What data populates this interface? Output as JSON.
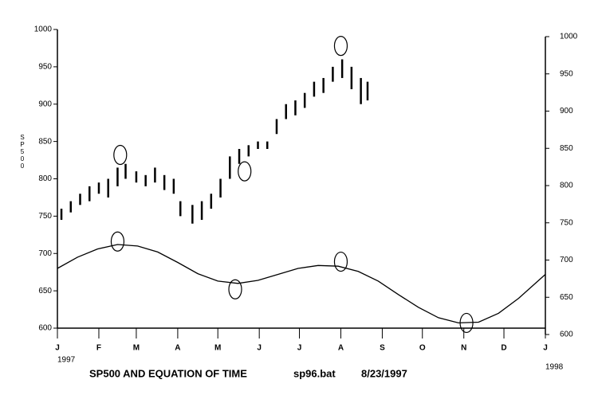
{
  "chart_data": {
    "type": "ohlc",
    "title": "SP500  AND EQUATION OF TIME",
    "annotations": [
      "sp96.bat",
      "8/23/1997"
    ],
    "ylabel": "SP500",
    "year_labels": [
      "1997",
      "1998"
    ],
    "xlim": [
      0,
      365
    ],
    "xticks": [
      {
        "value": 0,
        "label": "J"
      },
      {
        "value": 31,
        "label": "F"
      },
      {
        "value": 59,
        "label": "M"
      },
      {
        "value": 90,
        "label": "A"
      },
      {
        "value": 120,
        "label": "M"
      },
      {
        "value": 151,
        "label": "J"
      },
      {
        "value": 181,
        "label": "J"
      },
      {
        "value": 212,
        "label": "A"
      },
      {
        "value": 243,
        "label": "S"
      },
      {
        "value": 273,
        "label": "O"
      },
      {
        "value": 304,
        "label": "N"
      },
      {
        "value": 334,
        "label": "D"
      },
      {
        "value": 365,
        "label": "J"
      }
    ],
    "ylim": [
      600,
      1000
    ],
    "yticks": [
      600,
      650,
      700,
      750,
      800,
      850,
      900,
      950,
      1000
    ],
    "y2lim": [
      600,
      1000
    ],
    "y2ticks": [
      600,
      650,
      700,
      750,
      800,
      850,
      900,
      950,
      1000
    ],
    "color": "#000000",
    "price": {
      "x": [
        3,
        10,
        17,
        24,
        31,
        38,
        45,
        51,
        59,
        66,
        73,
        80,
        87,
        92,
        101,
        108,
        115,
        122,
        129,
        136,
        143,
        150,
        157,
        164,
        171,
        178,
        185,
        192,
        199,
        206,
        213,
        220,
        227,
        232
      ],
      "high": [
        760,
        770,
        780,
        790,
        795,
        800,
        815,
        820,
        810,
        805,
        815,
        805,
        800,
        770,
        765,
        770,
        780,
        800,
        830,
        840,
        845,
        850,
        850,
        880,
        900,
        905,
        915,
        930,
        935,
        950,
        960,
        950,
        935,
        930
      ],
      "low": [
        745,
        755,
        765,
        770,
        780,
        775,
        790,
        800,
        795,
        790,
        795,
        785,
        780,
        750,
        740,
        745,
        760,
        775,
        800,
        820,
        830,
        840,
        840,
        860,
        880,
        885,
        895,
        910,
        915,
        930,
        935,
        920,
        900,
        905
      ]
    },
    "curve": {
      "x": [
        0,
        15,
        30,
        45,
        60,
        75,
        90,
        105,
        120,
        135,
        150,
        165,
        180,
        195,
        210,
        225,
        240,
        255,
        270,
        285,
        300,
        315,
        330,
        345,
        360,
        365
      ],
      "values": [
        680,
        695,
        706,
        712,
        710,
        702,
        688,
        673,
        663,
        660,
        664,
        672,
        680,
        684,
        683,
        676,
        663,
        645,
        628,
        614,
        607,
        608,
        620,
        640,
        664,
        672
      ]
    },
    "circles": {
      "x": [
        47,
        140,
        212,
        45,
        133,
        212,
        306
      ],
      "y": [
        832,
        810,
        978,
        716,
        652,
        689,
        607
      ]
    }
  }
}
